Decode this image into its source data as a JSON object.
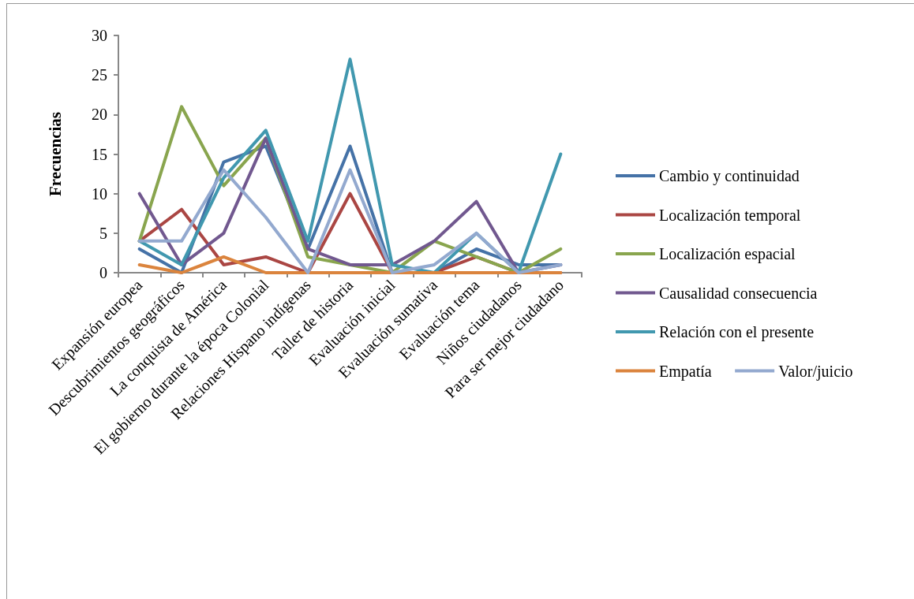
{
  "chart_data": {
    "type": "line",
    "ylabel": "Frecuencias",
    "categories": [
      "Expansión europea",
      "Descubrimientos geográficos",
      "La conquista de América",
      "El gobierno durante la época Colonial",
      "Relaciones Hispano indígenas",
      "Taller de historia",
      "Evaluación inicial",
      "Evaluación sumativa",
      "Evaluación tema",
      "Niños ciudadanos",
      "Para ser mejor ciudadano"
    ],
    "series": [
      {
        "name": "Cambio y continuidad",
        "color": "#4572a7",
        "values": [
          3,
          0,
          14,
          16,
          3,
          16,
          0,
          0,
          3,
          1,
          1
        ]
      },
      {
        "name": "Localización temporal",
        "color": "#aa4643",
        "values": [
          4,
          8,
          1,
          2,
          0,
          10,
          0,
          0,
          2,
          0,
          0
        ]
      },
      {
        "name": "Localización espacial",
        "color": "#89a54e",
        "values": [
          4,
          21,
          11,
          17,
          2,
          1,
          0,
          4,
          2,
          0,
          3
        ]
      },
      {
        "name": "Causalidad consecuencia",
        "color": "#71588f",
        "values": [
          10,
          1,
          5,
          17,
          3,
          1,
          1,
          4,
          9,
          0,
          1
        ]
      },
      {
        "name": "Relación con el presente",
        "color": "#4198af",
        "values": [
          4,
          1,
          12,
          18,
          4,
          27,
          1,
          0,
          5,
          0,
          15
        ]
      },
      {
        "name": "Empatía",
        "color": "#db843d",
        "values": [
          1,
          0,
          2,
          0,
          0,
          0,
          0,
          0,
          0,
          0,
          0
        ]
      },
      {
        "name": "Valor/juicio",
        "color": "#93a9cf",
        "values": [
          4,
          4,
          13,
          7,
          0,
          13,
          0,
          1,
          5,
          0,
          1
        ]
      }
    ],
    "ylim": [
      0,
      30
    ],
    "yticks": [
      0,
      5,
      10,
      15,
      20,
      25,
      30
    ],
    "grid": false,
    "legend": "right",
    "marker": "none",
    "line_style": "solid"
  }
}
